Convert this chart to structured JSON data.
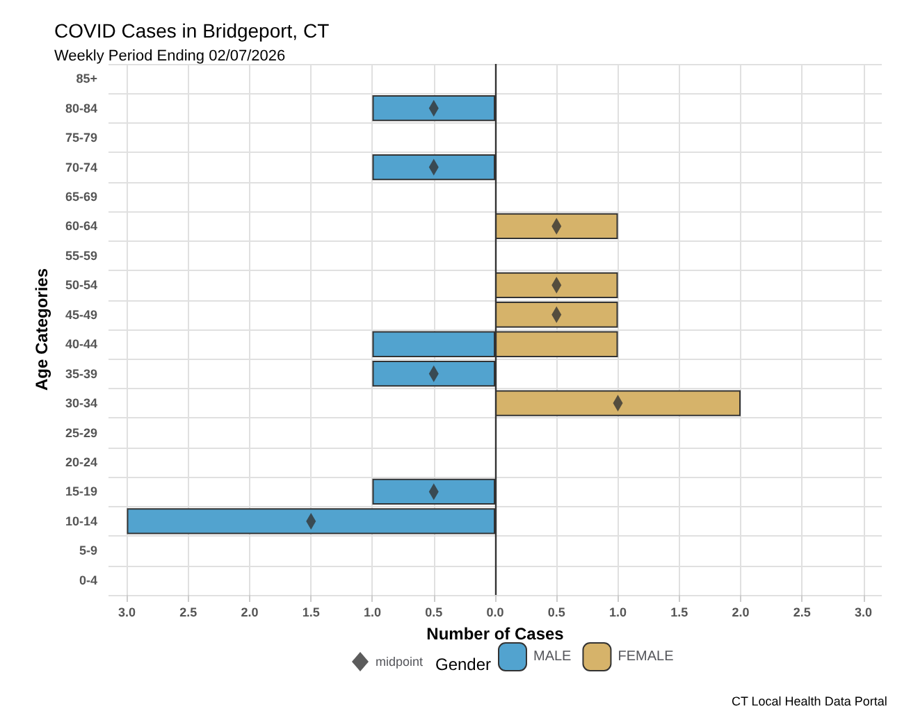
{
  "chart_data": {
    "type": "bar",
    "orientation": "horizontal",
    "stacked": true,
    "title": "COVID Cases in Bridgeport, CT",
    "subtitle": "Weekly Period Ending 02/07/2026",
    "xlabel": "Number of Cases",
    "ylabel": "Age Categories",
    "legend_title": "Gender",
    "legend": "bottom",
    "grid": true,
    "categories": [
      "85+",
      "80-84",
      "75-79",
      "70-74",
      "65-69",
      "60-64",
      "55-59",
      "50-54",
      "45-49",
      "40-44",
      "35-39",
      "30-34",
      "25-29",
      "20-24",
      "15-19",
      "10-14",
      "5-9",
      "0-4"
    ],
    "series": [
      {
        "name": "midpoint",
        "type": "scatter",
        "marker": "diamond",
        "color": "#333333",
        "x": [
          "80-84",
          "70-74",
          "60-64",
          "50-54",
          "45-49",
          "35-39",
          "30-34",
          "15-19",
          "10-14"
        ],
        "values": [
          -0.5,
          -0.5,
          0.5,
          0.5,
          0.5,
          -0.5,
          1,
          -0.5,
          -1.5
        ]
      },
      {
        "name": "MALE",
        "color": "#52a3cf",
        "values": [
          null,
          -1,
          null,
          -1,
          null,
          null,
          null,
          null,
          null,
          -1,
          -1,
          null,
          null,
          null,
          -1,
          -3,
          null,
          null
        ]
      },
      {
        "name": "FEMALE",
        "color": "#d6b36a",
        "values": [
          null,
          null,
          null,
          null,
          null,
          1,
          null,
          1,
          1,
          1,
          null,
          2,
          null,
          null,
          null,
          null,
          null,
          null
        ]
      }
    ],
    "xlim": [
      -3.15,
      3.15
    ],
    "xticks": [
      {
        "value": -3,
        "label": "3.0"
      },
      {
        "value": -2.5,
        "label": "2.5"
      },
      {
        "value": -2,
        "label": "2.0"
      },
      {
        "value": -1.5,
        "label": "1.5"
      },
      {
        "value": -1,
        "label": "1.0"
      },
      {
        "value": -0.5,
        "label": "0.5"
      },
      {
        "value": 0,
        "label": "0.0"
      },
      {
        "value": 0.5,
        "label": "0.5"
      },
      {
        "value": 1,
        "label": "1.0"
      },
      {
        "value": 1.5,
        "label": "1.5"
      },
      {
        "value": 2,
        "label": "2.0"
      },
      {
        "value": 2.5,
        "label": "2.5"
      },
      {
        "value": 3,
        "label": "3.0"
      }
    ],
    "ref_lines": [
      {
        "axis": "x",
        "value": 0,
        "color": "#333333",
        "line_style": "solid"
      }
    ],
    "annotations": [
      "CT Local Health Data Portal"
    ]
  }
}
